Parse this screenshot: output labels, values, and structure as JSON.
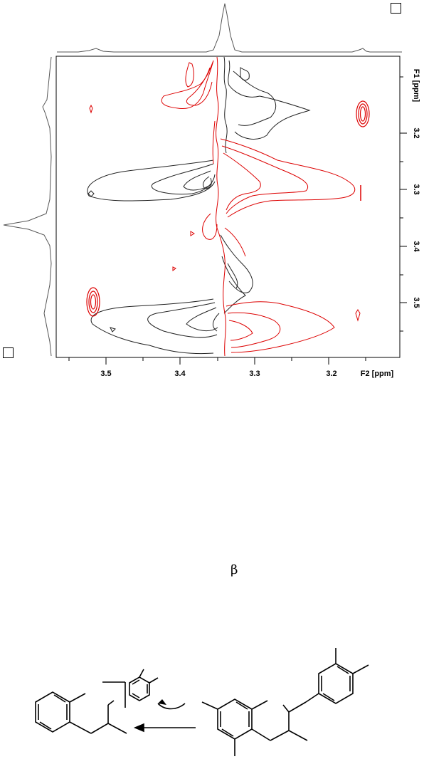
{
  "figure": {
    "x_axis": {
      "title": "F2 [ppm]",
      "ticks": [
        "3.5",
        "3.4",
        "3.3",
        "3.2"
      ],
      "range_ppm": [
        3.56,
        3.1
      ],
      "reversed": true
    },
    "y_axis": {
      "title": "F1 [ppm]",
      "ticks": [
        "3.2",
        "3.3",
        "3.4",
        "3.5"
      ],
      "range_ppm": [
        3.07,
        3.6
      ],
      "reversed": true
    },
    "colors": {
      "positive_contours": "#dd0000",
      "negative_contours": "#000000",
      "projection": "#555555"
    }
  },
  "caption": {
    "greek_letter": "β"
  },
  "scheme": {
    "arrow_direction": "left"
  }
}
